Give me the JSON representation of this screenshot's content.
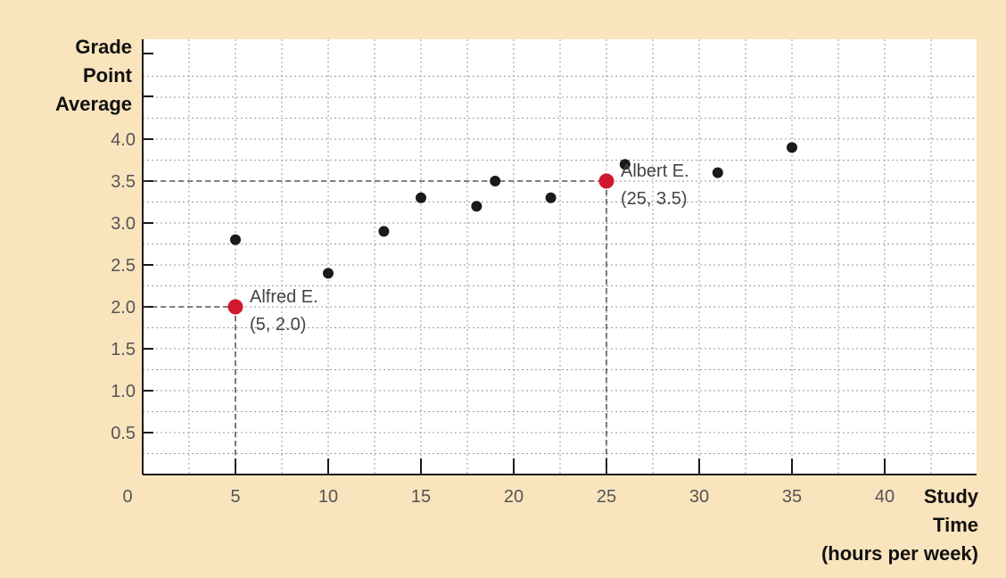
{
  "chart_data": {
    "type": "scatter",
    "ylabel_lines": [
      "Grade",
      "Point",
      "Average"
    ],
    "xlabel_lines": [
      "Study",
      "Time",
      "(hours per week)"
    ],
    "xlim": [
      0,
      45
    ],
    "ylim": [
      0,
      4.5
    ],
    "x_ticks": [
      0,
      5,
      10,
      15,
      20,
      25,
      30,
      35,
      40
    ],
    "x_tick_labels": [
      "0",
      "5",
      "10",
      "15",
      "20",
      "25",
      "30",
      "35",
      "40"
    ],
    "y_ticks": [
      0.5,
      1.0,
      1.5,
      2.0,
      2.5,
      3.0,
      3.5,
      4.0
    ],
    "y_tick_labels": [
      "0.5",
      "1.0",
      "1.5",
      "2.0",
      "2.5",
      "3.0",
      "3.5",
      "4.0"
    ],
    "grid": true,
    "points": [
      {
        "x": 5,
        "y": 2.8
      },
      {
        "x": 10,
        "y": 2.4
      },
      {
        "x": 13,
        "y": 2.9
      },
      {
        "x": 15,
        "y": 3.3
      },
      {
        "x": 18,
        "y": 3.2
      },
      {
        "x": 19,
        "y": 3.5
      },
      {
        "x": 22,
        "y": 3.3
      },
      {
        "x": 26,
        "y": 3.7
      },
      {
        "x": 31,
        "y": 3.6
      },
      {
        "x": 35,
        "y": 3.9
      }
    ],
    "highlighted_points": [
      {
        "x": 5,
        "y": 2.0,
        "name": "Alfred E.",
        "coords": "(5, 2.0)"
      },
      {
        "x": 25,
        "y": 3.5,
        "name": "Albert E.",
        "coords": "(25, 3.5)"
      }
    ],
    "colors": {
      "background": "#f9e4bd",
      "plot_area": "#ffffff",
      "point": "#1a1a1a",
      "highlight": "#d0192e",
      "grid": "#9a9a9a"
    }
  }
}
